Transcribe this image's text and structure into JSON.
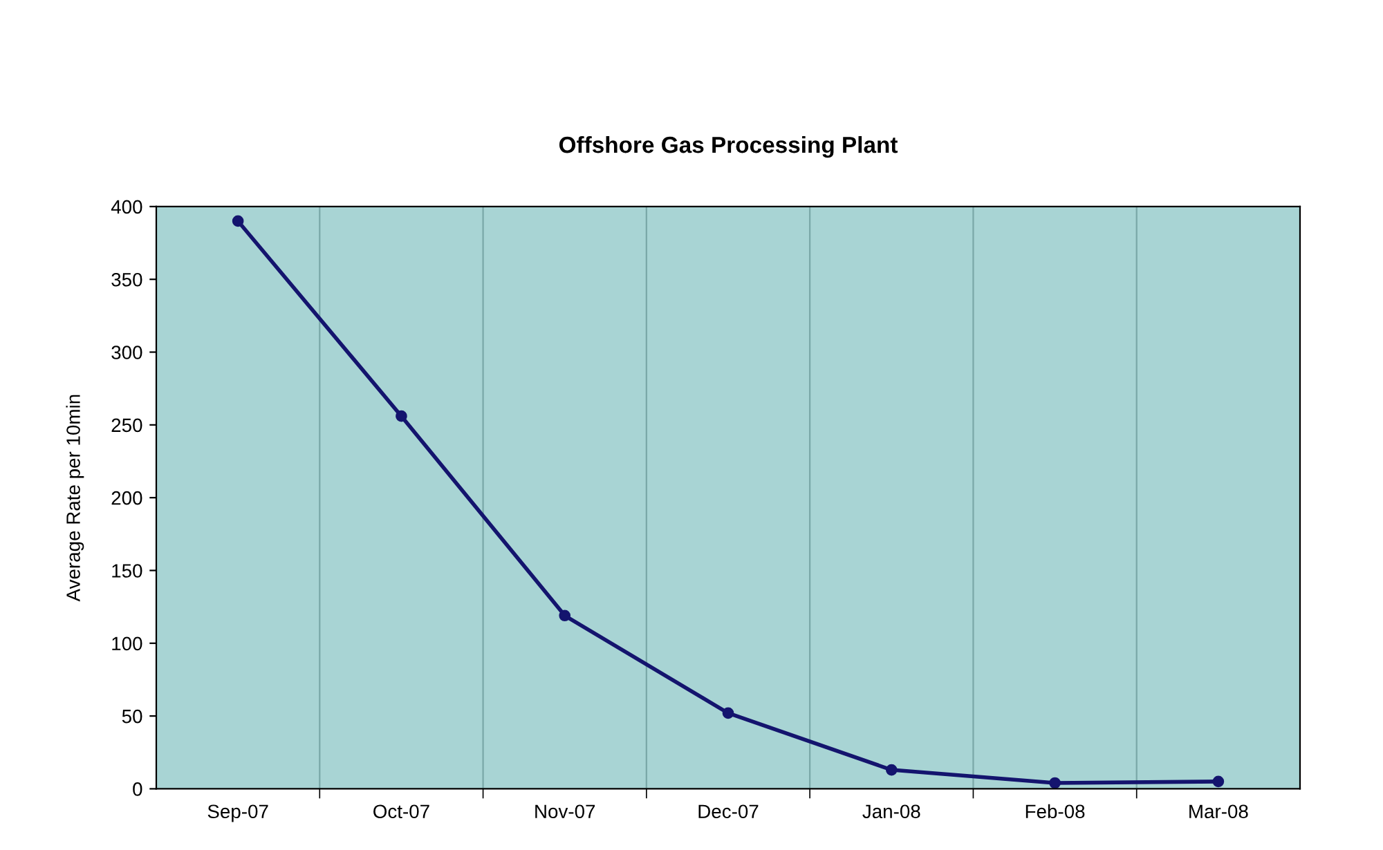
{
  "chart_data": {
    "type": "line",
    "title": "Offshore Gas Processing Plant",
    "ylabel": "Average Rate per 10min",
    "categories": [
      "Sep-07",
      "Oct-07",
      "Nov-07",
      "Dec-07",
      "Jan-08",
      "Feb-08",
      "Mar-08"
    ],
    "series": [
      {
        "color": "#14146e",
        "values": [
          390,
          256,
          119,
          52,
          13,
          4,
          5
        ]
      }
    ],
    "ylim": [
      0,
      400
    ],
    "yticks": [
      0,
      50,
      100,
      150,
      200,
      250,
      300,
      350,
      400
    ],
    "grid": "x",
    "marker": "circle",
    "line_style": "solid"
  }
}
